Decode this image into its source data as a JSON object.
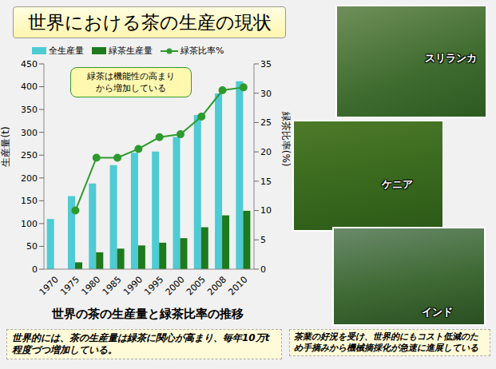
{
  "title": "世界における茶の生産の現状",
  "chart_data": {
    "type": "bar",
    "title": "世界の茶の生産量と緑茶比率の推移",
    "categories": [
      "1970",
      "1975",
      "1980",
      "1985",
      "1990",
      "1995",
      "2000",
      "2005",
      "2008",
      "2010"
    ],
    "series": [
      {
        "name": "全生産量",
        "type": "bar",
        "color": "#4ecbd3",
        "values": [
          110,
          160,
          188,
          228,
          255,
          258,
          290,
          338,
          385,
          412
        ]
      },
      {
        "name": "緑茶生産量",
        "type": "bar",
        "color": "#1d7a1d",
        "values": [
          null,
          15,
          37,
          45,
          52,
          58,
          68,
          92,
          118,
          128
        ]
      },
      {
        "name": "緑茶比率%",
        "type": "line",
        "axis": "y2",
        "color": "#2e9a2e",
        "marker": "circle",
        "values": [
          null,
          10,
          19,
          19,
          20.5,
          22.5,
          23,
          26,
          30.5,
          31
        ]
      }
    ],
    "y_label": "生産量(t)",
    "y2_label": "緑茶比率(%)",
    "ylim": [
      0,
      450
    ],
    "yticks": [
      0,
      50,
      100,
      150,
      200,
      250,
      300,
      350,
      400,
      450
    ],
    "y2lim": [
      0,
      35
    ],
    "y2ticks": [
      0,
      5,
      10,
      15,
      20,
      25,
      30,
      35
    ],
    "grid": false,
    "legend": "top",
    "annotation": [
      "緑茶は機能性の高まり",
      "から増加している"
    ]
  },
  "photos": [
    "スリランカ",
    "ケニア",
    "インド"
  ],
  "captions": [
    "世界的には、茶の生産量は緑茶に関心が高まり、毎年10万t程度づつ増加している。",
    "茶業の好況を受け、世界的にもコスト低減のため手摘みから機械摘採化が急速に進展している"
  ]
}
